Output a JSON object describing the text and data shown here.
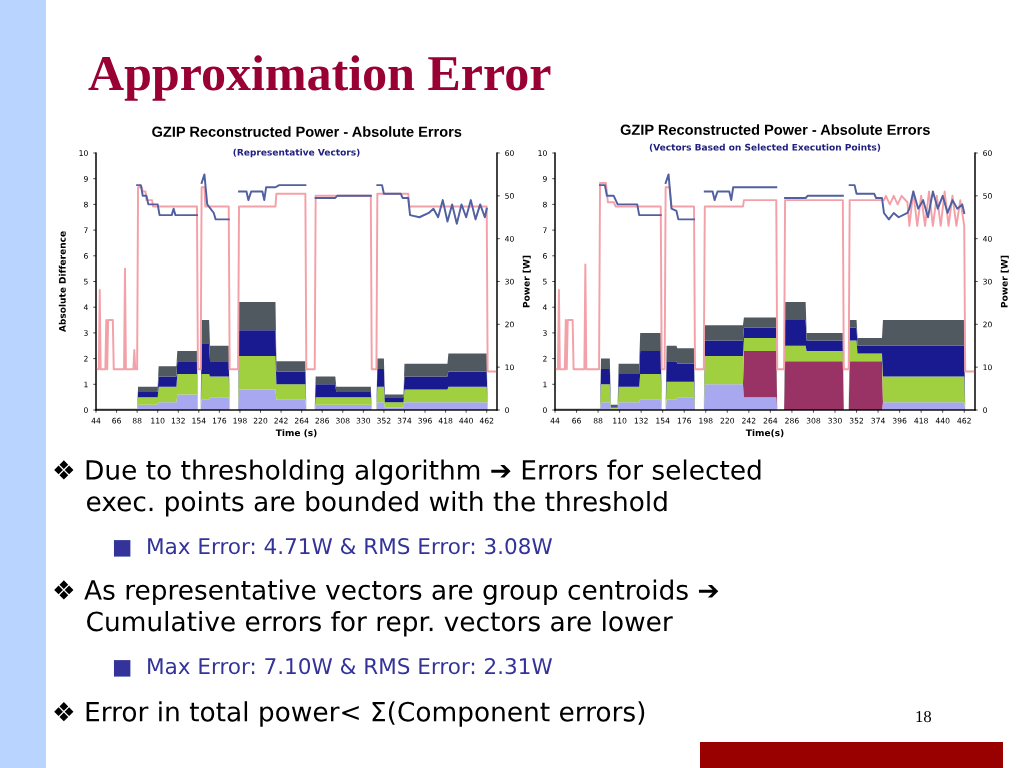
{
  "chart_data": [
    {
      "type": "area",
      "stacked": true,
      "title": "GZIP Reconstructed Power - Absolute Errors",
      "subtitle": "(Representative Vectors)",
      "xlabel": "Time (s)",
      "ylabel": "Absolute Difference",
      "y2label": "Power [W]",
      "xlim": [
        44,
        473
      ],
      "xticks": [
        44,
        66,
        88,
        110,
        132,
        154,
        176,
        198,
        220,
        242,
        264,
        286,
        308,
        330,
        352,
        374,
        396,
        418,
        440,
        462
      ],
      "ylim": [
        0,
        10
      ],
      "yticks": [
        0,
        1,
        2,
        3,
        4,
        5,
        6,
        7,
        8,
        9,
        10
      ],
      "y2lim": [
        0,
        60
      ],
      "y2ticks": [
        0,
        10,
        20,
        30,
        40,
        50,
        60
      ],
      "grid": false,
      "legend": false,
      "x": [
        44,
        88,
        89,
        110,
        111,
        130,
        131,
        152,
        153,
        156,
        157,
        165,
        166,
        186,
        187,
        196,
        197,
        236,
        237,
        268,
        269,
        278,
        279,
        300,
        301,
        338,
        339,
        344,
        345,
        352,
        353,
        373,
        374,
        420,
        421,
        462,
        463,
        473
      ],
      "series": [
        {
          "type": "area",
          "color": "#a8a8f0",
          "values": [
            0.02,
            0.02,
            0.2,
            0.2,
            0.3,
            0.3,
            0.6,
            0.6,
            0,
            0,
            0.4,
            0.4,
            0.5,
            0.5,
            0,
            0,
            0.8,
            0.8,
            0.4,
            0.4,
            0,
            0,
            0.2,
            0.2,
            0.2,
            0.2,
            0,
            0,
            0.3,
            0.3,
            0.1,
            0.1,
            0.3,
            0.3,
            0.3,
            0.3,
            0,
            0
          ]
        },
        {
          "type": "area",
          "color": "#a0d040",
          "values": [
            0.01,
            0.01,
            0.3,
            0.3,
            0.6,
            0.6,
            0.8,
            0.8,
            0,
            0,
            1.0,
            1.0,
            0.8,
            0.8,
            0,
            0,
            1.3,
            1.3,
            0.6,
            0.6,
            0,
            0,
            0.3,
            0.3,
            0.3,
            0.3,
            0,
            0,
            0.6,
            0.6,
            0.2,
            0.2,
            0.5,
            0.5,
            0.6,
            0.6,
            0,
            0
          ]
        },
        {
          "type": "area",
          "color": "#1a1a90",
          "values": [
            0.01,
            0.01,
            0.2,
            0.2,
            0.4,
            0.4,
            0.5,
            0.5,
            0,
            0,
            1.2,
            1.2,
            0.6,
            0.6,
            0,
            0,
            1.0,
            1.0,
            0.5,
            0.5,
            0,
            0,
            0.5,
            0.5,
            0.2,
            0.2,
            0,
            0,
            0.7,
            0.7,
            0.2,
            0.2,
            0.5,
            0.5,
            0.6,
            0.6,
            0,
            0
          ]
        },
        {
          "type": "area",
          "color": "#505860",
          "values": [
            0.01,
            0.01,
            0.2,
            0.2,
            0.4,
            0.4,
            0.4,
            0.4,
            0,
            0,
            0.9,
            0.9,
            0.6,
            0.6,
            0,
            0,
            1.1,
            1.1,
            0.4,
            0.4,
            0,
            0,
            0.3,
            0.3,
            0.2,
            0.2,
            0,
            0,
            0.4,
            0.4,
            0.1,
            0.1,
            0.5,
            0.5,
            0.7,
            0.7,
            0,
            0
          ]
        },
        {
          "type": "line",
          "axis": "y2",
          "color": "#f4a0a8",
          "x": [
            44,
            47,
            48,
            49,
            54,
            55,
            56,
            57,
            62,
            63,
            74,
            75,
            76,
            84,
            85,
            86,
            88,
            89,
            93,
            94,
            97,
            98,
            104,
            105,
            152,
            153,
            156,
            157,
            160,
            161,
            186,
            187,
            196,
            197,
            236,
            237,
            268,
            269,
            278,
            279,
            338,
            339,
            344,
            345,
            378,
            379,
            462,
            463,
            473
          ],
          "values": [
            9.5,
            9.5,
            28,
            9.5,
            9.5,
            21,
            9.5,
            21,
            21,
            9.5,
            9.5,
            33,
            9.5,
            9.5,
            14,
            9.5,
            9.5,
            52,
            52,
            51,
            51,
            49,
            49,
            47.5,
            47.5,
            9.5,
            9.5,
            52,
            52,
            47.5,
            47.5,
            9.5,
            9.5,
            47.5,
            47.5,
            50.5,
            50.5,
            9.5,
            9.5,
            50,
            50,
            9.5,
            9.5,
            50.5,
            50.5,
            47.5,
            47.5,
            9,
            9
          ]
        },
        {
          "type": "line",
          "axis": "y2",
          "color": "#5060a0",
          "x": [
            88,
            92,
            94,
            98,
            100,
            110,
            112,
            125,
            127,
            129,
            152,
            153,
            157,
            160,
            163,
            170,
            172,
            186,
            187,
            197,
            205,
            207,
            210,
            222,
            224,
            226,
            236,
            240,
            268,
            269,
            279,
            300,
            302,
            338,
            339,
            345,
            350,
            352,
            370,
            372,
            378,
            380,
            390,
            400,
            405,
            410,
            415,
            420,
            425,
            430,
            435,
            440,
            445,
            450,
            455,
            460,
            462
          ],
          "values": [
            52.5,
            52.5,
            50,
            50,
            48,
            48,
            45.5,
            45.5,
            47,
            45.5,
            45.5,
            null,
            53,
            55,
            48,
            46,
            44.5,
            44.5,
            null,
            51,
            51,
            49,
            51,
            51,
            49,
            52,
            52,
            52.5,
            52.5,
            null,
            49.5,
            49.5,
            50,
            50,
            null,
            52.5,
            52.5,
            50.5,
            50.5,
            49.5,
            49.5,
            45.5,
            45,
            46,
            47,
            45,
            49,
            44,
            48,
            43.5,
            48,
            45,
            49,
            44.5,
            48,
            45,
            47
          ]
        }
      ]
    },
    {
      "type": "area",
      "stacked": true,
      "title": "GZIP Reconstructed Power - Absolute Errors",
      "subtitle": "(Vectors Based on Selected Execution Points)",
      "xlabel": "Time(s)",
      "y2label": "Power [W]",
      "xlim": [
        44,
        473
      ],
      "xticks": [
        44,
        66,
        88,
        110,
        132,
        154,
        176,
        198,
        220,
        242,
        264,
        286,
        308,
        330,
        352,
        374,
        396,
        418,
        440,
        462
      ],
      "ylim": [
        0,
        10
      ],
      "yticks": [
        0,
        1,
        2,
        3,
        4,
        5,
        6,
        7,
        8,
        9,
        10
      ],
      "y2lim": [
        0,
        60
      ],
      "y2ticks": [
        0,
        10,
        20,
        30,
        40,
        50,
        60
      ],
      "grid": false,
      "legend": false,
      "x": [
        44,
        90,
        91,
        100,
        101,
        108,
        109,
        130,
        131,
        152,
        153,
        157,
        158,
        168,
        169,
        186,
        187,
        196,
        197,
        236,
        237,
        270,
        271,
        278,
        279,
        300,
        301,
        338,
        339,
        344,
        345,
        352,
        353,
        378,
        379,
        462,
        463,
        473
      ],
      "series": [
        {
          "type": "area",
          "color": "#a8a8f0",
          "values": [
            0.02,
            0.02,
            0.3,
            0.3,
            0.05,
            0.05,
            0.3,
            0.3,
            0.4,
            0.4,
            0,
            0,
            0.4,
            0.4,
            0.5,
            0.5,
            0,
            0,
            1.0,
            1.0,
            0.5,
            0.5,
            0,
            0,
            0,
            0,
            0,
            0,
            0,
            0,
            0,
            0,
            0,
            0,
            0.3,
            0.3,
            0,
            0
          ]
        },
        {
          "type": "area",
          "color": "#993366",
          "values": [
            0,
            0,
            0,
            0,
            0,
            0,
            0,
            0,
            0,
            0,
            0,
            0,
            0,
            0,
            0,
            0,
            0,
            0,
            0,
            0,
            1.8,
            1.8,
            0,
            0,
            1.9,
            1.9,
            1.9,
            1.9,
            0,
            0,
            1.9,
            1.9,
            1.9,
            1.9,
            0,
            0,
            0,
            0
          ]
        },
        {
          "type": "area",
          "color": "#a0d040",
          "values": [
            0.01,
            0.01,
            0.7,
            0.7,
            0.05,
            0.05,
            0.6,
            0.6,
            1.0,
            1.0,
            0,
            0,
            0.7,
            0.7,
            0.6,
            0.6,
            0,
            0,
            1.1,
            1.1,
            0.5,
            0.5,
            0,
            0,
            0.6,
            0.6,
            0.4,
            0.4,
            0,
            0,
            0.8,
            0.8,
            0.3,
            0.3,
            1.0,
            1.0,
            0,
            0
          ]
        },
        {
          "type": "area",
          "color": "#1a1a90",
          "values": [
            0.01,
            0.01,
            0.6,
            0.6,
            0.05,
            0.05,
            0.5,
            0.5,
            0.9,
            0.9,
            0,
            0,
            0.8,
            0.8,
            0.7,
            0.7,
            0,
            0,
            0.6,
            0.6,
            0.4,
            0.4,
            0,
            0,
            1.0,
            1.0,
            0.4,
            0.4,
            0,
            0,
            0.5,
            0.5,
            0.3,
            0.3,
            1.2,
            1.2,
            0,
            0
          ]
        },
        {
          "type": "area",
          "color": "#505860",
          "values": [
            0.01,
            0.01,
            0.4,
            0.4,
            0.05,
            0.05,
            0.4,
            0.4,
            0.7,
            0.7,
            0,
            0,
            0.6,
            0.6,
            0.6,
            0.6,
            0,
            0,
            0.6,
            0.6,
            0.4,
            0.4,
            0,
            0,
            0.7,
            0.7,
            0.3,
            0.3,
            0,
            0,
            0.3,
            0.3,
            0.3,
            0.3,
            1.0,
            1.0,
            0,
            0
          ]
        },
        {
          "type": "line",
          "axis": "y2",
          "color": "#f4a0a8",
          "x": [
            44,
            47,
            48,
            49,
            54,
            55,
            56,
            57,
            62,
            63,
            74,
            75,
            76,
            88,
            89,
            90,
            96,
            98,
            104,
            106,
            152,
            153,
            156,
            157,
            161,
            163,
            186,
            187,
            196,
            197,
            236,
            237,
            270,
            271,
            278,
            279,
            338,
            339,
            344,
            345,
            380,
            382,
            386,
            390,
            394,
            398,
            404,
            406,
            410,
            414,
            418,
            422,
            426,
            430,
            434,
            438,
            442,
            446,
            450,
            454,
            458,
            462,
            463,
            473
          ],
          "values": [
            9.5,
            9.5,
            28,
            9.5,
            9.5,
            21,
            9.5,
            21,
            21,
            9.5,
            9.5,
            34,
            9.5,
            9.5,
            9.5,
            53,
            53,
            48.5,
            48.5,
            47.5,
            47.5,
            9.5,
            9.5,
            52,
            52,
            47.5,
            47.5,
            9.5,
            9.5,
            47.5,
            47.5,
            49,
            49,
            9.5,
            9.5,
            49,
            49,
            9.5,
            9.5,
            49,
            49,
            50,
            48,
            50,
            48,
            50,
            48.5,
            43,
            51,
            43,
            50,
            43,
            51,
            43,
            50,
            43,
            51,
            43,
            50,
            43,
            49,
            43,
            9,
            9
          ]
        },
        {
          "type": "line",
          "axis": "y2",
          "color": "#5060a0",
          "x": [
            90,
            95,
            97,
            104,
            108,
            128,
            130,
            152,
            153,
            157,
            160,
            163,
            168,
            170,
            186,
            187,
            197,
            205,
            207,
            210,
            222,
            224,
            226,
            236,
            240,
            270,
            271,
            279,
            300,
            302,
            338,
            339,
            345,
            350,
            352,
            370,
            372,
            378,
            380,
            385,
            390,
            395,
            404,
            406,
            410,
            415,
            420,
            425,
            430,
            435,
            440,
            445,
            450,
            455,
            460,
            462
          ],
          "values": [
            52.5,
            52.5,
            50,
            50,
            48,
            48,
            45.5,
            45.5,
            null,
            53,
            55,
            47,
            46.5,
            44.5,
            44.5,
            null,
            51,
            51,
            49,
            51,
            51,
            49,
            52,
            52,
            52,
            52,
            null,
            49.5,
            49.5,
            50,
            50,
            null,
            52.5,
            52.5,
            50.5,
            50.5,
            49.5,
            49.5,
            46,
            44.5,
            46,
            45,
            46,
            47,
            51,
            47,
            49,
            45,
            51,
            47,
            50,
            46,
            49,
            47,
            48,
            46
          ]
        }
      ]
    },
    {
      "type": "other",
      "title": "Approximation Error",
      "annotations": [
        "❖ Due to thresholding algorithm ➔ Errors for selected\n    exec. points are bounded with the threshold",
        "■  Max Error: 4.71W & RMS Error: 3.08W",
        "❖ As representative vectors are group centroids ➔\n    Cumulative errors for repr. vectors are lower",
        "■  Max Error: 7.10W & RMS Error: 2.31W",
        "❖ Error in total power< Σ(Component errors)",
        "18"
      ]
    }
  ]
}
